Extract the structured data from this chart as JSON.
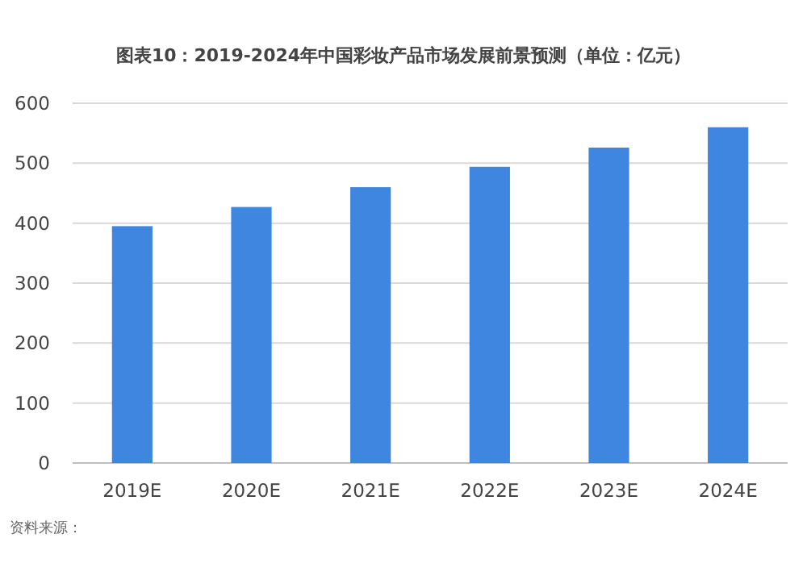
{
  "chart_data": {
    "type": "bar",
    "title": "图表10：2019-2024年中国彩妆产品市场发展前景预测（单位：亿元）",
    "categories": [
      "2019E",
      "2020E",
      "2021E",
      "2022E",
      "2023E",
      "2024E"
    ],
    "values": [
      395,
      427,
      460,
      494,
      526,
      560
    ],
    "color": "#3f86e0",
    "ylim": [
      0,
      600
    ],
    "yticks": [
      0,
      100,
      200,
      300,
      400,
      500,
      600
    ],
    "grid": "y",
    "annotations": [
      "资料来源："
    ]
  }
}
